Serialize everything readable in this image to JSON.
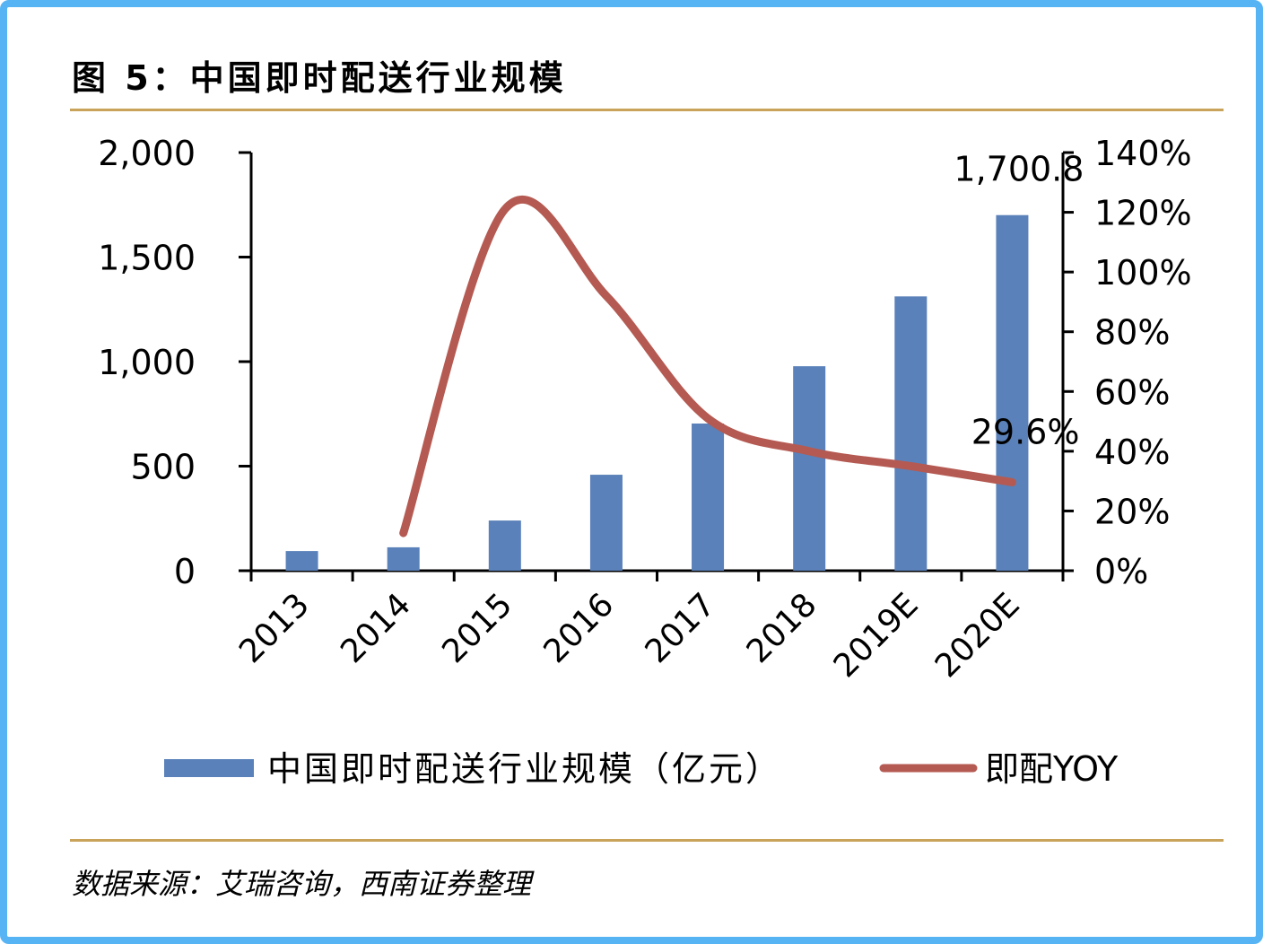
{
  "title": "图 5：中国即时配送行业规模",
  "source": "数据来源：艾瑞咨询，西南证券整理",
  "chart_data": {
    "type": "bar+line",
    "categories": [
      "2013",
      "2014",
      "2015",
      "2016",
      "2017",
      "2018",
      "2019E",
      "2020E"
    ],
    "series": [
      {
        "name": "中国即时配送行业规模（亿元）",
        "type": "bar",
        "axis": "left",
        "color": "#5a81b9",
        "values": [
          94,
          112,
          240,
          459,
          704,
          978,
          1312,
          1700.8
        ]
      },
      {
        "name": "即配YOY",
        "type": "line",
        "axis": "right",
        "color": "#b55a52",
        "values": [
          null,
          12.6,
          121,
          92,
          51,
          40,
          35,
          29.6
        ]
      }
    ],
    "data_labels": {
      "bar_last": "1,700.8",
      "line_last": "29.6%"
    },
    "left_axis": {
      "ylim": [
        0,
        2000
      ],
      "ticks": [
        0,
        500,
        1000,
        1500,
        2000
      ],
      "tick_labels": [
        "0",
        "500",
        "1,000",
        "1,500",
        "2,000"
      ]
    },
    "right_axis": {
      "ylim": [
        0,
        140
      ],
      "unit": "%",
      "ticks": [
        0,
        20,
        40,
        60,
        80,
        100,
        120,
        140
      ],
      "tick_labels": [
        "0%",
        "20%",
        "40%",
        "60%",
        "80%",
        "100%",
        "120%",
        "140%"
      ]
    },
    "grid": false,
    "legend_placement": "bottom"
  }
}
